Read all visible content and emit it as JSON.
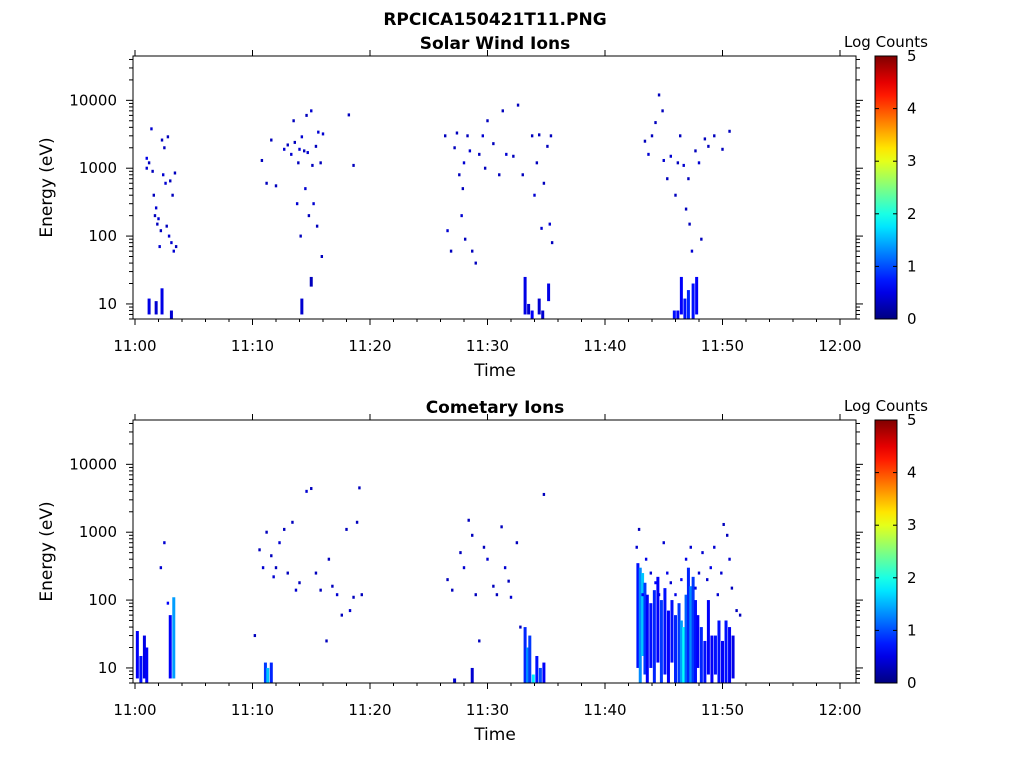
{
  "figure_title": "RPCICA150421T11.PNG",
  "chart_data": [
    {
      "type": "heatmap",
      "title": "Solar Wind Ions",
      "xlabel": "Time",
      "ylabel": "Energy (eV)",
      "x_ticks": [
        "11:00",
        "11:10",
        "11:20",
        "11:30",
        "11:40",
        "11:50",
        "12:00"
      ],
      "xlim": [
        "11:00",
        "12:00"
      ],
      "y_scale": "log",
      "y_ticks": [
        "10",
        "100",
        "1000",
        "10000"
      ],
      "ylim": [
        6,
        45000
      ],
      "colorbar": {
        "label": "Log Counts",
        "ticks": [
          "0",
          "1",
          "2",
          "3",
          "4",
          "5"
        ],
        "range": [
          0,
          5
        ],
        "colormap": "jet"
      },
      "points": [
        [
          1.0,
          1400,
          0.5
        ],
        [
          1.0,
          1000,
          0.4
        ],
        [
          1.2,
          1200,
          0.3
        ],
        [
          1.4,
          3800,
          0.4
        ],
        [
          1.5,
          900,
          0.3
        ],
        [
          1.6,
          400,
          0.3
        ],
        [
          1.7,
          200,
          0.3
        ],
        [
          1.8,
          260,
          0.4
        ],
        [
          1.9,
          150,
          0.3
        ],
        [
          2.0,
          180,
          0.4
        ],
        [
          2.1,
          70,
          0.4
        ],
        [
          2.2,
          120,
          0.3
        ],
        [
          2.3,
          2600,
          0.3
        ],
        [
          2.4,
          800,
          0.4
        ],
        [
          2.5,
          2000,
          0.3
        ],
        [
          2.6,
          600,
          0.4
        ],
        [
          2.7,
          140,
          0.3
        ],
        [
          2.8,
          2900,
          0.3
        ],
        [
          2.9,
          100,
          0.4
        ],
        [
          3.0,
          650,
          0.3
        ],
        [
          3.1,
          80,
          0.4
        ],
        [
          3.2,
          400,
          0.3
        ],
        [
          3.3,
          60,
          0.4
        ],
        [
          3.4,
          850,
          0.3
        ],
        [
          3.5,
          70,
          0.3
        ],
        [
          10.8,
          1300,
          0.3
        ],
        [
          11.2,
          600,
          0.3
        ],
        [
          11.6,
          2600,
          0.3
        ],
        [
          12.0,
          550,
          0.3
        ],
        [
          12.7,
          1900,
          0.4
        ],
        [
          13.0,
          2200,
          0.3
        ],
        [
          13.3,
          1600,
          0.4
        ],
        [
          13.5,
          5000,
          0.3
        ],
        [
          13.6,
          2400,
          0.3
        ],
        [
          13.8,
          300,
          0.4
        ],
        [
          13.9,
          1200,
          0.3
        ],
        [
          14.0,
          1900,
          0.4
        ],
        [
          14.1,
          100,
          0.3
        ],
        [
          14.2,
          2900,
          0.4
        ],
        [
          14.4,
          1800,
          0.3
        ],
        [
          14.5,
          500,
          0.4
        ],
        [
          14.6,
          6000,
          0.3
        ],
        [
          14.7,
          1700,
          0.4
        ],
        [
          14.8,
          200,
          0.3
        ],
        [
          15.0,
          7000,
          0.4
        ],
        [
          15.1,
          1100,
          0.3
        ],
        [
          15.2,
          300,
          0.4
        ],
        [
          15.4,
          2100,
          0.3
        ],
        [
          15.5,
          140,
          0.3
        ],
        [
          15.6,
          3400,
          0.4
        ],
        [
          15.8,
          1200,
          0.3
        ],
        [
          15.9,
          50,
          0.3
        ],
        [
          16.0,
          3200,
          0.4
        ],
        [
          18.2,
          6100,
          0.3
        ],
        [
          18.6,
          1100,
          0.3
        ],
        [
          26.4,
          3000,
          0.3
        ],
        [
          26.6,
          120,
          0.4
        ],
        [
          26.9,
          60,
          0.3
        ],
        [
          27.2,
          2000,
          0.3
        ],
        [
          27.4,
          3300,
          0.3
        ],
        [
          27.6,
          800,
          0.3
        ],
        [
          27.8,
          200,
          0.4
        ],
        [
          27.9,
          500,
          0.3
        ],
        [
          28.0,
          1200,
          0.4
        ],
        [
          28.1,
          90,
          0.3
        ],
        [
          28.3,
          3000,
          0.3
        ],
        [
          28.5,
          1800,
          0.4
        ],
        [
          28.7,
          60,
          0.3
        ],
        [
          29.0,
          40,
          0.3
        ],
        [
          29.3,
          1600,
          0.3
        ],
        [
          29.6,
          3000,
          0.4
        ],
        [
          29.8,
          1000,
          0.3
        ],
        [
          30.0,
          5000,
          0.3
        ],
        [
          30.5,
          2300,
          0.3
        ],
        [
          31.0,
          800,
          0.3
        ],
        [
          31.3,
          7000,
          0.3
        ],
        [
          31.6,
          1600,
          0.4
        ],
        [
          32.2,
          1500,
          0.3
        ],
        [
          32.6,
          8500,
          0.3
        ],
        [
          33.0,
          800,
          0.3
        ],
        [
          33.8,
          3000,
          0.3
        ],
        [
          34.0,
          400,
          0.4
        ],
        [
          34.2,
          1200,
          0.3
        ],
        [
          34.4,
          3100,
          0.3
        ],
        [
          34.6,
          130,
          0.4
        ],
        [
          34.8,
          600,
          0.3
        ],
        [
          35.1,
          2100,
          0.3
        ],
        [
          35.3,
          150,
          0.4
        ],
        [
          35.4,
          3000,
          0.3
        ],
        [
          35.5,
          80,
          0.3
        ],
        [
          43.4,
          2500,
          0.3
        ],
        [
          43.7,
          1600,
          0.4
        ],
        [
          44.0,
          3000,
          0.3
        ],
        [
          44.3,
          4700,
          0.3
        ],
        [
          44.6,
          12000,
          0.3
        ],
        [
          44.9,
          7000,
          0.3
        ],
        [
          45.0,
          1300,
          0.4
        ],
        [
          45.3,
          700,
          0.3
        ],
        [
          45.6,
          1500,
          0.4
        ],
        [
          46.0,
          400,
          0.3
        ],
        [
          46.2,
          1200,
          0.3
        ],
        [
          46.4,
          3000,
          0.3
        ],
        [
          46.7,
          1100,
          0.4
        ],
        [
          46.9,
          250,
          0.3
        ],
        [
          47.1,
          700,
          0.3
        ],
        [
          47.2,
          150,
          0.3
        ],
        [
          47.4,
          60,
          0.4
        ],
        [
          47.7,
          1800,
          0.3
        ],
        [
          48.0,
          1200,
          0.4
        ],
        [
          48.2,
          90,
          0.3
        ],
        [
          48.5,
          2700,
          0.3
        ],
        [
          48.8,
          2100,
          0.3
        ],
        [
          49.3,
          3000,
          0.3
        ],
        [
          50.0,
          1900,
          0.3
        ],
        [
          50.6,
          3500,
          0.3
        ]
      ],
      "columns": [
        [
          1.2,
          7,
          12,
          0.5
        ],
        [
          1.8,
          7,
          11,
          0.4
        ],
        [
          2.3,
          7,
          17,
          0.5
        ],
        [
          3.1,
          6,
          8,
          0.4
        ],
        [
          14.2,
          7,
          12,
          0.4
        ],
        [
          15.0,
          18,
          25,
          0.3
        ],
        [
          33.2,
          7,
          25,
          0.5
        ],
        [
          33.5,
          7,
          10,
          0.4
        ],
        [
          33.8,
          6,
          8,
          0.6
        ],
        [
          34.4,
          7,
          12,
          0.4
        ],
        [
          34.7,
          6,
          8,
          0.4
        ],
        [
          35.2,
          11,
          20,
          0.5
        ],
        [
          45.9,
          6,
          8,
          0.7
        ],
        [
          46.2,
          6,
          8,
          0.6
        ],
        [
          46.5,
          7,
          25,
          0.6
        ],
        [
          46.8,
          6,
          12,
          0.7
        ],
        [
          47.1,
          6,
          16,
          0.8
        ],
        [
          47.5,
          6,
          20,
          0.7
        ],
        [
          47.8,
          7,
          25,
          0.6
        ]
      ]
    },
    {
      "type": "heatmap",
      "title": "Cometary Ions",
      "xlabel": "Time",
      "ylabel": "Energy (eV)",
      "x_ticks": [
        "11:00",
        "11:10",
        "11:20",
        "11:30",
        "11:40",
        "11:50",
        "12:00"
      ],
      "xlim": [
        "11:00",
        "12:00"
      ],
      "y_scale": "log",
      "y_ticks": [
        "10",
        "100",
        "1000",
        "10000"
      ],
      "ylim": [
        6,
        45000
      ],
      "colorbar": {
        "label": "Log Counts",
        "ticks": [
          "0",
          "1",
          "2",
          "3",
          "4",
          "5"
        ],
        "range": [
          0,
          5
        ],
        "colormap": "jet"
      },
      "points": [
        [
          2.2,
          300,
          0.4
        ],
        [
          2.5,
          700,
          0.4
        ],
        [
          2.8,
          90,
          0.6
        ],
        [
          10.2,
          30,
          0.3
        ],
        [
          10.6,
          550,
          0.3
        ],
        [
          10.9,
          300,
          0.4
        ],
        [
          11.2,
          1000,
          0.3
        ],
        [
          11.6,
          450,
          0.3
        ],
        [
          11.8,
          220,
          0.4
        ],
        [
          12.0,
          300,
          0.3
        ],
        [
          12.3,
          700,
          0.4
        ],
        [
          12.7,
          1100,
          0.3
        ],
        [
          13.0,
          250,
          0.3
        ],
        [
          13.4,
          1400,
          0.3
        ],
        [
          13.7,
          140,
          0.4
        ],
        [
          14.0,
          180,
          0.3
        ],
        [
          14.6,
          4000,
          0.4
        ],
        [
          15.0,
          4400,
          0.3
        ],
        [
          15.4,
          250,
          0.3
        ],
        [
          15.8,
          140,
          0.3
        ],
        [
          16.3,
          25,
          0.3
        ],
        [
          16.5,
          400,
          0.3
        ],
        [
          16.8,
          160,
          0.3
        ],
        [
          17.2,
          120,
          0.4
        ],
        [
          17.6,
          60,
          0.3
        ],
        [
          18.0,
          1100,
          0.3
        ],
        [
          18.3,
          70,
          0.4
        ],
        [
          18.6,
          110,
          0.3
        ],
        [
          18.9,
          1400,
          0.3
        ],
        [
          19.1,
          4500,
          0.3
        ],
        [
          19.3,
          120,
          0.3
        ],
        [
          26.6,
          200,
          0.3
        ],
        [
          27.0,
          140,
          0.3
        ],
        [
          27.7,
          500,
          0.3
        ],
        [
          28.0,
          300,
          0.4
        ],
        [
          28.4,
          1500,
          0.3
        ],
        [
          28.7,
          900,
          0.3
        ],
        [
          29.0,
          120,
          0.3
        ],
        [
          29.3,
          25,
          0.3
        ],
        [
          29.7,
          600,
          0.3
        ],
        [
          30.0,
          400,
          0.4
        ],
        [
          30.5,
          160,
          0.3
        ],
        [
          30.8,
          120,
          0.3
        ],
        [
          31.2,
          1200,
          0.3
        ],
        [
          31.5,
          300,
          0.4
        ],
        [
          31.8,
          190,
          0.3
        ],
        [
          32.0,
          110,
          0.4
        ],
        [
          32.5,
          700,
          0.3
        ],
        [
          32.8,
          40,
          0.3
        ],
        [
          34.8,
          3600,
          0.3
        ],
        [
          42.7,
          600,
          0.4
        ],
        [
          42.9,
          1100,
          0.3
        ],
        [
          43.2,
          120,
          0.6
        ],
        [
          43.5,
          400,
          0.5
        ],
        [
          43.9,
          250,
          0.4
        ],
        [
          44.3,
          180,
          0.6
        ],
        [
          44.6,
          120,
          0.5
        ],
        [
          45.0,
          700,
          0.4
        ],
        [
          45.3,
          250,
          0.5
        ],
        [
          45.6,
          180,
          0.4
        ],
        [
          46.0,
          120,
          0.5
        ],
        [
          46.5,
          200,
          0.6
        ],
        [
          46.9,
          400,
          0.5
        ],
        [
          47.3,
          600,
          0.4
        ],
        [
          47.7,
          150,
          0.5
        ],
        [
          48.0,
          250,
          0.4
        ],
        [
          48.3,
          500,
          0.4
        ],
        [
          48.7,
          200,
          0.4
        ],
        [
          49.0,
          300,
          0.5
        ],
        [
          49.3,
          600,
          0.4
        ],
        [
          49.6,
          120,
          0.4
        ],
        [
          49.9,
          250,
          0.4
        ],
        [
          50.1,
          1300,
          0.3
        ],
        [
          50.4,
          900,
          0.3
        ],
        [
          50.6,
          400,
          0.4
        ],
        [
          50.8,
          150,
          0.3
        ],
        [
          51.2,
          70,
          0.3
        ],
        [
          51.5,
          60,
          0.3
        ]
      ],
      "columns": [
        [
          0.2,
          7,
          35,
          0.6
        ],
        [
          0.5,
          6,
          15,
          0.7
        ],
        [
          0.8,
          7,
          30,
          0.5
        ],
        [
          1.0,
          6,
          20,
          0.6
        ],
        [
          3.0,
          7,
          60,
          0.6
        ],
        [
          3.3,
          7,
          110,
          1.4
        ],
        [
          11.1,
          6,
          12,
          0.9
        ],
        [
          11.3,
          6,
          10,
          1.6
        ],
        [
          11.6,
          6,
          12,
          0.8
        ],
        [
          27.2,
          6,
          7,
          0.4
        ],
        [
          28.7,
          6,
          10,
          0.4
        ],
        [
          33.2,
          6,
          40,
          0.8
        ],
        [
          33.4,
          6,
          20,
          1.3
        ],
        [
          33.6,
          6,
          30,
          0.9
        ],
        [
          33.9,
          6,
          8,
          1.8
        ],
        [
          34.2,
          6,
          15,
          0.7
        ],
        [
          34.5,
          6,
          10,
          1.0
        ],
        [
          34.8,
          6,
          12,
          0.6
        ],
        [
          42.8,
          10,
          350,
          0.7
        ],
        [
          43.0,
          6,
          300,
          1.3
        ],
        [
          43.2,
          15,
          250,
          1.6
        ],
        [
          43.4,
          8,
          180,
          0.9
        ],
        [
          43.6,
          6,
          120,
          0.6
        ],
        [
          43.9,
          10,
          90,
          0.7
        ],
        [
          44.2,
          6,
          140,
          0.8
        ],
        [
          44.5,
          12,
          220,
          0.6
        ],
        [
          44.8,
          6,
          100,
          0.9
        ],
        [
          45.1,
          8,
          150,
          0.7
        ],
        [
          45.4,
          6,
          70,
          0.6
        ],
        [
          45.7,
          12,
          100,
          0.7
        ],
        [
          46.0,
          6,
          60,
          0.8
        ],
        [
          46.3,
          6,
          90,
          0.9
        ],
        [
          46.5,
          6,
          50,
          1.4
        ],
        [
          46.7,
          6,
          40,
          1.9
        ],
        [
          46.9,
          6,
          120,
          1.1
        ],
        [
          47.1,
          6,
          300,
          0.8
        ],
        [
          47.3,
          6,
          160,
          1.3
        ],
        [
          47.5,
          6,
          220,
          0.9
        ],
        [
          47.7,
          6,
          100,
          0.7
        ],
        [
          47.9,
          10,
          60,
          0.6
        ],
        [
          48.2,
          6,
          40,
          0.8
        ],
        [
          48.5,
          6,
          25,
          0.7
        ],
        [
          48.8,
          8,
          100,
          0.6
        ],
        [
          49.1,
          6,
          30,
          0.6
        ],
        [
          49.4,
          8,
          30,
          0.7
        ],
        [
          49.7,
          6,
          50,
          0.7
        ],
        [
          50.0,
          6,
          25,
          0.6
        ],
        [
          50.3,
          6,
          50,
          0.7
        ],
        [
          50.6,
          6,
          40,
          0.6
        ],
        [
          50.9,
          7,
          30,
          0.5
        ]
      ]
    }
  ]
}
